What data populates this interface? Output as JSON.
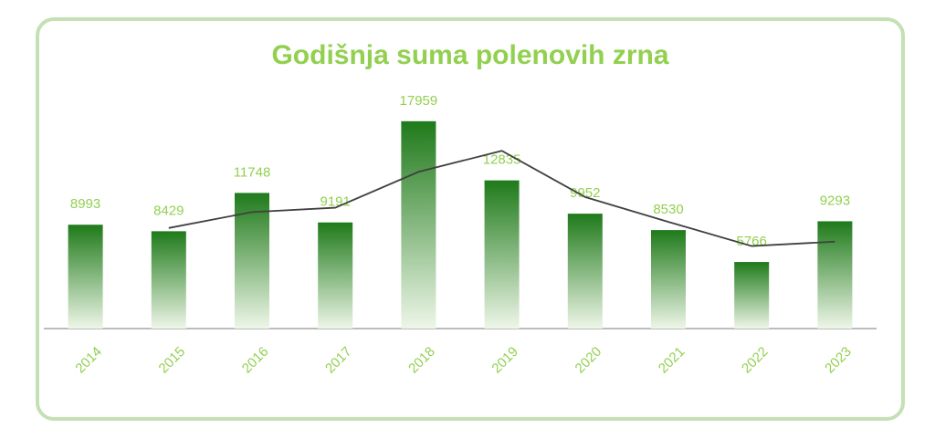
{
  "chart_data": {
    "type": "bar",
    "title": "Godišnja suma polenovih zrna",
    "categories": [
      "2014",
      "2015",
      "2016",
      "2017",
      "2018",
      "2019",
      "2020",
      "2021",
      "2022",
      "2023"
    ],
    "values": [
      8993,
      8429,
      11748,
      9191,
      17959,
      12835,
      9952,
      8530,
      5766,
      9293
    ],
    "color": "#1f7a1a",
    "trendline": {
      "color": "#404040",
      "values": [
        null,
        8711,
        10089,
        10470,
        13575,
        15397,
        11394,
        9241,
        7148,
        7530
      ]
    },
    "ylim": [
      0,
      20000
    ]
  }
}
